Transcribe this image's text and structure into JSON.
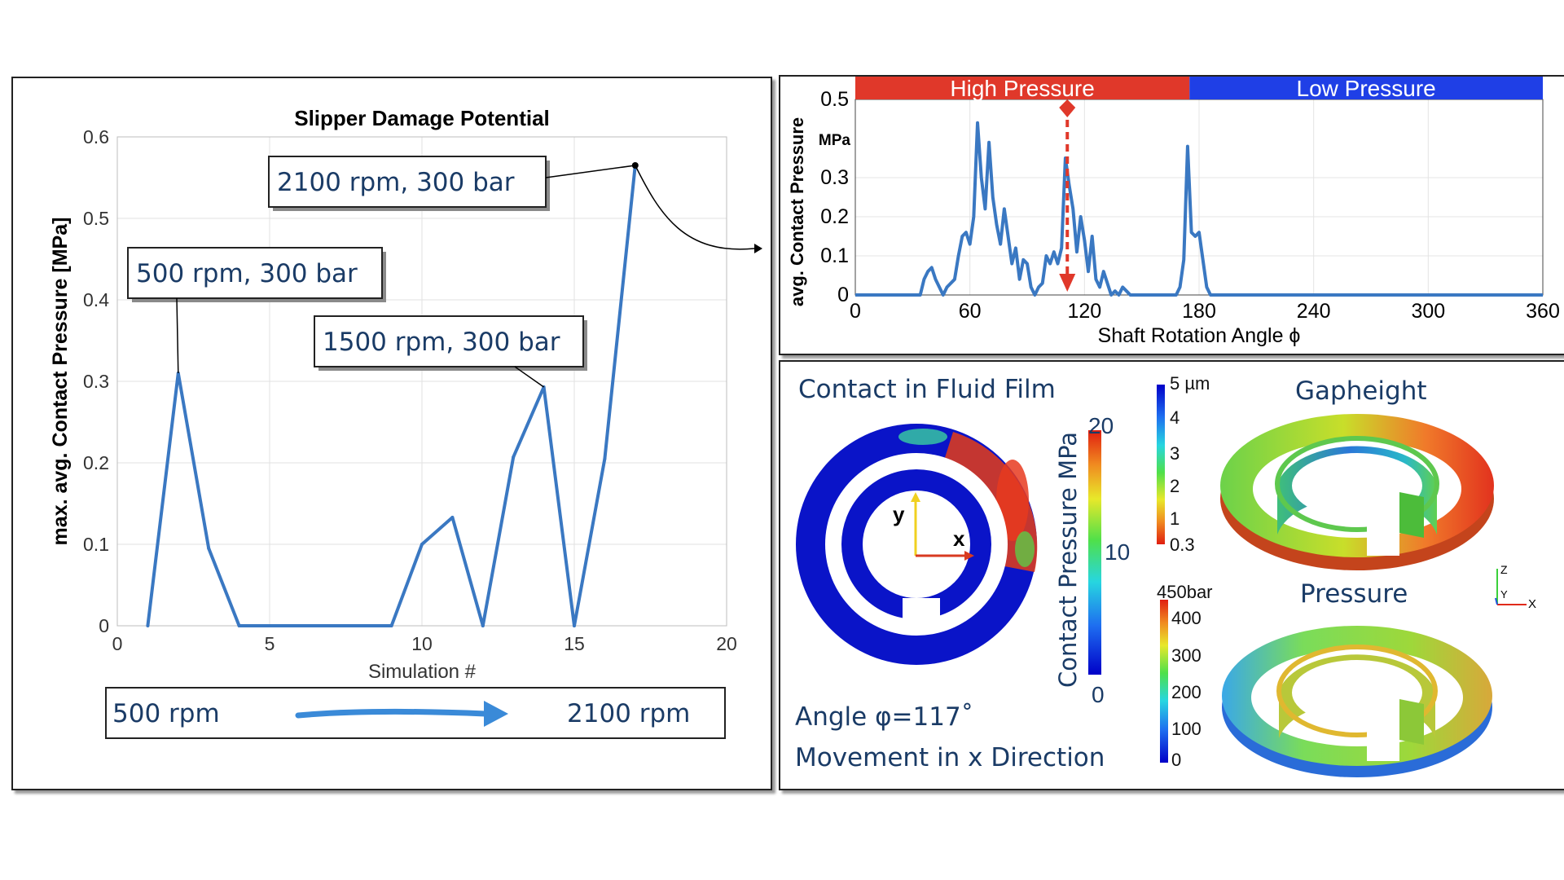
{
  "colors": {
    "line": "#3a78c2",
    "high": "#e0382a",
    "low": "#1f3fe6",
    "text_blue": "#1a3b66",
    "annot_box": "#222222"
  },
  "chart_data": [
    {
      "type": "line",
      "title": "Slipper Damage Potential",
      "xlabel": "Simulation #",
      "ylabel": "max. avg. Contact Pressure [MPa]",
      "xlim": [
        0,
        20
      ],
      "ylim": [
        0,
        0.6
      ],
      "x_ticks": [
        0,
        5,
        10,
        15,
        20
      ],
      "y_ticks": [
        0,
        0.1,
        0.2,
        0.3,
        0.4,
        0.5,
        0.6
      ],
      "x_tick_labels": [
        "0",
        "5",
        "10",
        "15",
        "20"
      ],
      "y_tick_labels": [
        "0",
        "0.1",
        "0.2",
        "0.3",
        "0.4",
        "0.5",
        "0.6"
      ],
      "grid": true,
      "x": [
        1,
        2,
        3,
        4,
        5,
        6,
        7,
        8,
        9,
        10,
        11,
        12,
        13,
        14,
        15,
        16,
        17
      ],
      "values": [
        0,
        0.31,
        0.095,
        0,
        0,
        0,
        0,
        0,
        0,
        0.1,
        0.133,
        0,
        0.207,
        0.293,
        0,
        0.205,
        0.565
      ],
      "annotations": [
        {
          "text": "500 rpm, 300 bar",
          "x": 2,
          "y": 0.31
        },
        {
          "text": "1500 rpm, 300 bar",
          "x": 14,
          "y": 0.293
        },
        {
          "text": "2100 rpm, 300 bar",
          "x": 17,
          "y": 0.565
        }
      ],
      "speed_bar": {
        "start": "500 rpm",
        "end": "2100 rpm"
      }
    },
    {
      "type": "line",
      "title": "",
      "xlabel": "Shaft Rotation Angle ϕ",
      "ylabel": "avg. Contact Pressure",
      "yunit": "MPa",
      "xlim": [
        0,
        360
      ],
      "ylim": [
        0,
        0.5
      ],
      "x_ticks": [
        0,
        60,
        120,
        180,
        240,
        300,
        360
      ],
      "y_ticks": [
        0,
        0.1,
        0.2,
        0.3,
        0.5
      ],
      "x_tick_labels": [
        "0",
        "60",
        "120",
        "180",
        "240",
        "300",
        "360"
      ],
      "y_tick_labels": [
        "0",
        "0.1",
        "0.2",
        "0.3",
        "0.5"
      ],
      "grid": true,
      "bands": [
        {
          "label": "High Pressure",
          "from": 0,
          "to": 175
        },
        {
          "label": "Low Pressure",
          "from": 175,
          "to": 360
        }
      ],
      "marker_angle": 111,
      "x": [
        0,
        34,
        36,
        38,
        40,
        42,
        44,
        46,
        48,
        52,
        54,
        56,
        58,
        60,
        62,
        64,
        66,
        68,
        70,
        72,
        74,
        76,
        78,
        80,
        82,
        84,
        86,
        88,
        90,
        92,
        94,
        96,
        98,
        100,
        102,
        104,
        106,
        108,
        110,
        112,
        114,
        116,
        118,
        120,
        122,
        124,
        126,
        128,
        130,
        132,
        134,
        136,
        138,
        140,
        142,
        144,
        146,
        168,
        170,
        172,
        174,
        176,
        178,
        180,
        182,
        184,
        186,
        360
      ],
      "values": [
        0,
        0,
        0.04,
        0.06,
        0.07,
        0.04,
        0.02,
        0,
        0.02,
        0.04,
        0.1,
        0.15,
        0.16,
        0.13,
        0.2,
        0.44,
        0.3,
        0.22,
        0.39,
        0.25,
        0.18,
        0.13,
        0.22,
        0.15,
        0.08,
        0.12,
        0.04,
        0.09,
        0.08,
        0.02,
        0,
        0.02,
        0.03,
        0.1,
        0.08,
        0.11,
        0.08,
        0.12,
        0.35,
        0.28,
        0.22,
        0.11,
        0.2,
        0.14,
        0.06,
        0.15,
        0.04,
        0.02,
        0.06,
        0.03,
        0,
        0.01,
        0,
        0.02,
        0.01,
        0,
        0,
        0,
        0.02,
        0.09,
        0.38,
        0.16,
        0.15,
        0.16,
        0.09,
        0.02,
        0,
        0
      ]
    }
  ],
  "viz": {
    "contact_title": "Contact in Fluid Film",
    "axis_y": "y",
    "axis_x": "x",
    "cbar_contact_title": "Contact Pressure MPa",
    "cbar_contact_ticks": [
      "20",
      "10",
      "0"
    ],
    "cbar_gap_ticks": [
      "5 µm",
      "4",
      "3",
      "2",
      "1",
      "0.3"
    ],
    "cbar_press_ticks": [
      "450bar",
      "400",
      "300",
      "200",
      "100",
      "0"
    ],
    "gap_title": "Gapheight",
    "press_title": "Pressure",
    "triad_z": "Z",
    "triad_y": "Y",
    "triad_x": "X",
    "angle_text": "Angle  φ=117˚",
    "movement_text": "Movement in x Direction"
  }
}
